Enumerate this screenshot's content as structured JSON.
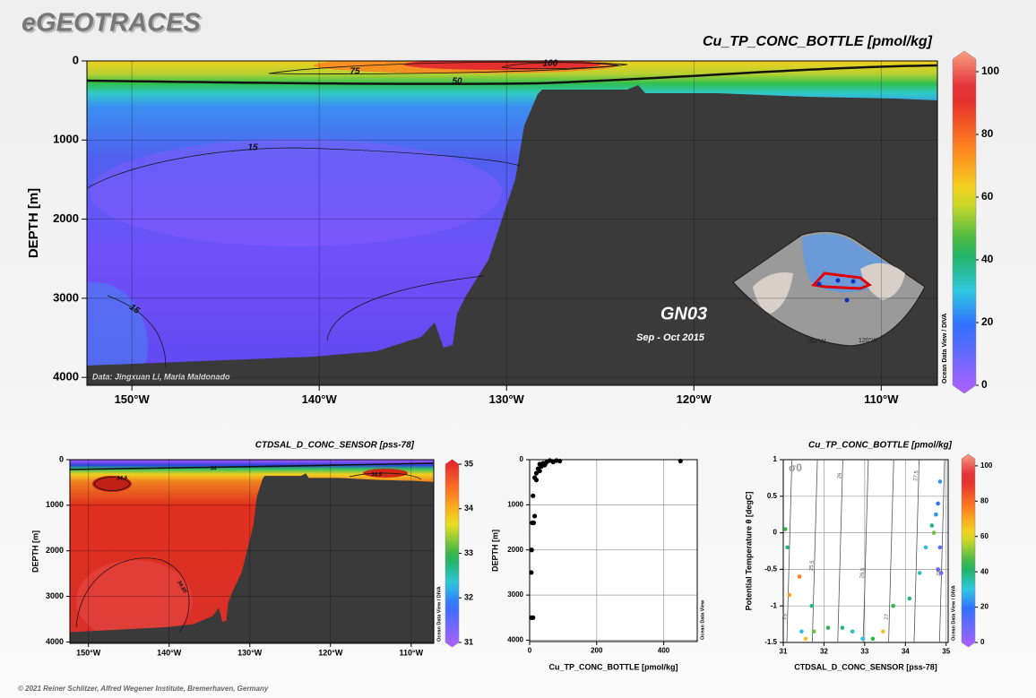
{
  "header": {
    "title": "eGEOTRACES"
  },
  "footer": {
    "credit": "© 2021 Reiner Schlitzer, Alfred Wegener Institute, Bremerhaven, Germany"
  },
  "chart_data": [
    {
      "type": "section",
      "title": "Cu_TP_CONC_BOTTLE [pmol/kg]",
      "ylabel": "DEPTH [m]",
      "xlim": [
        -152.4,
        -107.0
      ],
      "xticks": [
        {
          "value": -150,
          "label": "150°W"
        },
        {
          "value": -140,
          "label": "140°W"
        },
        {
          "value": -130,
          "label": "130°W"
        },
        {
          "value": -120,
          "label": "120°W"
        },
        {
          "value": -110,
          "label": "110°W"
        }
      ],
      "ylim": [
        4100,
        0
      ],
      "yticks": [
        0,
        1000,
        2000,
        3000,
        4000
      ],
      "grid": true,
      "colorbar": {
        "lim": [
          0,
          104
        ],
        "ticks": [
          0,
          20,
          40,
          60,
          80,
          100
        ]
      },
      "contours": [
        100,
        75,
        50,
        15,
        15
      ],
      "annotations": {
        "cruise": "GN03",
        "dates": "Sep - Oct 2015",
        "credit": "Data: Jingxuan Li, Maria Maldonado",
        "watermark": "Ocean Data View / DIVA"
      },
      "map_labels": [
        "150°W",
        "120°W"
      ]
    },
    {
      "type": "section",
      "title": "CTDSAL_D_CONC_SENSOR [pss-78]",
      "ylabel": "DEPTH [m]",
      "xlim": [
        -152.3,
        -107.2
      ],
      "xticks": [
        {
          "value": -150,
          "label": "150°W"
        },
        {
          "value": -140,
          "label": "140°W"
        },
        {
          "value": -130,
          "label": "130°W"
        },
        {
          "value": -120,
          "label": "120°W"
        },
        {
          "value": -110,
          "label": "110°W"
        }
      ],
      "ylim": [
        4030,
        0
      ],
      "yticks": [
        0,
        1000,
        2000,
        3000,
        4000
      ],
      "grid": true,
      "colorbar": {
        "lim": [
          31,
          35
        ],
        "ticks": [
          31,
          32,
          33,
          34,
          35
        ]
      },
      "contours": [
        34.9,
        34,
        34.9,
        34.85
      ],
      "annotations": {
        "watermark": "Ocean Data View / DIVA"
      }
    },
    {
      "type": "scatter",
      "xlabel": "Cu_TP_CONC_BOTTLE [pmol/kg]",
      "ylabel": "DEPTH [m]",
      "xlim": [
        0,
        500
      ],
      "xticks": [
        0,
        200,
        400
      ],
      "ylim": [
        4030,
        0
      ],
      "yticks": [
        0,
        1000,
        2000,
        3000,
        4000
      ],
      "grid": true,
      "color": "#000000",
      "x": [
        60,
        80,
        90,
        70,
        50,
        40,
        30,
        45,
        35,
        25,
        30,
        20,
        15,
        20,
        450,
        10,
        15,
        12,
        8,
        6,
        5,
        10,
        5
      ],
      "y": [
        20,
        20,
        30,
        50,
        60,
        80,
        100,
        120,
        150,
        200,
        250,
        300,
        400,
        450,
        30,
        800,
        1250,
        1400,
        1400,
        2000,
        2500,
        3500,
        3500
      ],
      "annotations": {
        "watermark": "Ocean Data View"
      }
    },
    {
      "type": "ts",
      "title": "Cu_TP_CONC_BOTTLE [pmol/kg]",
      "xlabel": "CTDSAL_D_CONC_SENSOR [pss-78]",
      "ylabel": "Potential Temperature θ [degC]",
      "xlim": [
        31,
        35.05
      ],
      "xticks": [
        31,
        32,
        33,
        34,
        35
      ],
      "ylim": [
        -1.5,
        1
      ],
      "yticks": [
        1,
        0.5,
        0,
        -0.5,
        -1,
        -1.5
      ],
      "grid": true,
      "x": [
        31.05,
        31.1,
        31.15,
        31.4,
        31.45,
        31.55,
        31.7,
        31.75,
        32.1,
        32.45,
        32.7,
        32.95,
        33.2,
        33.45,
        33.7,
        34.1,
        34.35,
        34.5,
        34.65,
        34.75,
        34.8,
        34.85,
        34.8,
        34.88,
        34.85,
        34.7
      ],
      "y": [
        0.05,
        -0.2,
        -0.85,
        -0.6,
        -1.35,
        -1.45,
        -1.0,
        -1.35,
        -1.3,
        -1.3,
        -1.35,
        -1.45,
        -1.45,
        -1.35,
        -1.0,
        -0.9,
        -0.55,
        -0.2,
        0.1,
        0.25,
        0.4,
        0.7,
        -0.5,
        -0.55,
        -0.2,
        0.0
      ],
      "values": [
        45,
        40,
        70,
        75,
        30,
        65,
        40,
        50,
        45,
        40,
        35,
        30,
        45,
        65,
        45,
        40,
        35,
        30,
        40,
        25,
        20,
        25,
        15,
        10,
        15,
        50
      ],
      "colorbar": {
        "lim": [
          0,
          104
        ],
        "ticks": [
          0,
          20,
          40,
          60,
          80,
          100
        ]
      },
      "isopycnal_label": "σ0",
      "isopycnals": [
        25,
        25.5,
        26,
        26.5,
        27,
        27.5,
        28
      ],
      "annotations": {
        "watermark": "Ocean Data View / DIVA"
      }
    }
  ]
}
